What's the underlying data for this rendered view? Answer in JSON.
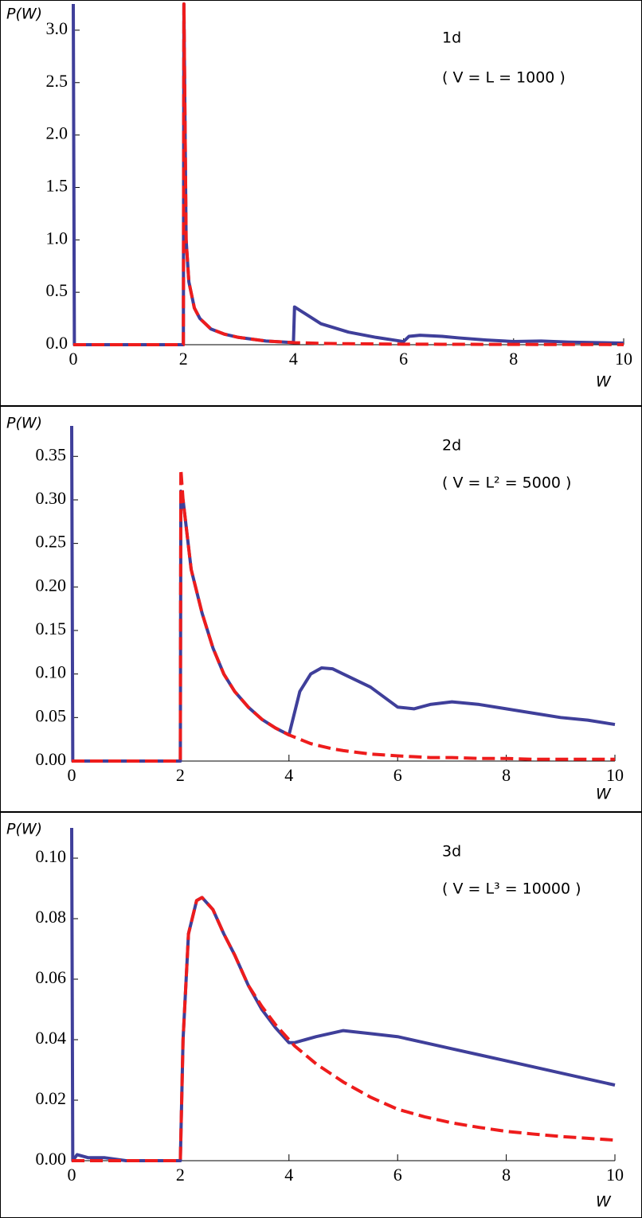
{
  "chart_data": [
    {
      "type": "line",
      "ylabel": "P(W)",
      "xlabel": "W",
      "annotations": [
        "1d",
        "( V = L = 1000 )"
      ],
      "xlim": [
        0,
        10
      ],
      "xticks": [
        0,
        2,
        4,
        6,
        8,
        10
      ],
      "ylim": [
        0,
        3.25
      ],
      "yticks": [
        {
          "value": 0,
          "label": "0.0"
        },
        0.5,
        {
          "value": 1,
          "label": "1.0"
        },
        1.5,
        {
          "value": 2,
          "label": "2.0"
        },
        2.5,
        {
          "value": 3,
          "label": "3.0"
        }
      ],
      "x": [
        0,
        0.02,
        2.0,
        2.01,
        2.05,
        2.1,
        2.2,
        2.3,
        2.5,
        2.75,
        3,
        3.5,
        4.0,
        4.02,
        4.2,
        4.5,
        5,
        5.5,
        6.0,
        6.1,
        6.3,
        6.7,
        7,
        7.5,
        8,
        8.5,
        9,
        9.5,
        10
      ],
      "series": [
        {
          "color": "#3f3f9a",
          "dashed": false,
          "values": [
            3.25,
            0,
            0,
            3.25,
            1.0,
            0.6,
            0.35,
            0.25,
            0.15,
            0.1,
            0.07,
            0.035,
            0.02,
            0.36,
            0.3,
            0.2,
            0.12,
            0.07,
            0.03,
            0.08,
            0.09,
            0.08,
            0.065,
            0.045,
            0.03,
            0.035,
            0.025,
            0.02,
            0.015
          ]
        },
        {
          "color": "#ee1c1c",
          "dashed": true,
          "values": [
            0,
            0,
            0,
            3.25,
            1.0,
            0.6,
            0.35,
            0.25,
            0.15,
            0.1,
            0.07,
            0.035,
            0.02,
            0.019,
            0.017,
            0.013,
            0.009,
            0.007,
            0.005,
            0.005,
            0.005,
            0.004,
            0.004,
            0.003,
            0.003,
            0.002,
            0.002,
            0.002,
            0.001
          ]
        }
      ]
    },
    {
      "type": "line",
      "ylabel": "P(W)",
      "xlabel": "W",
      "annotations": [
        "2d",
        "( V = L² = 5000 )"
      ],
      "xlim": [
        0,
        10
      ],
      "xticks": [
        0,
        2,
        4,
        6,
        8,
        10
      ],
      "ylim": [
        0,
        0.385
      ],
      "yticks": [
        {
          "value": 0,
          "label": "0.00"
        },
        0.05,
        {
          "value": 0.1,
          "label": "0.10"
        },
        0.15,
        {
          "value": 0.2,
          "label": "0.20"
        },
        0.25,
        {
          "value": 0.3,
          "label": "0.30"
        },
        0.35
      ],
      "x": [
        0,
        0.02,
        2.0,
        2.01,
        2.05,
        2.2,
        2.4,
        2.6,
        2.8,
        3,
        3.25,
        3.5,
        3.75,
        4.0,
        4.2,
        4.4,
        4.6,
        4.8,
        5,
        5.5,
        6,
        6.3,
        6.6,
        7,
        7.5,
        8,
        8.5,
        9,
        9.5,
        10
      ],
      "series": [
        {
          "color": "#3f3f9a",
          "dashed": false,
          "values": [
            0.385,
            0,
            0,
            0.31,
            0.3,
            0.22,
            0.17,
            0.13,
            0.1,
            0.08,
            0.062,
            0.048,
            0.038,
            0.03,
            0.08,
            0.1,
            0.107,
            0.106,
            0.1,
            0.085,
            0.062,
            0.06,
            0.065,
            0.068,
            0.065,
            0.06,
            0.055,
            0.05,
            0.047,
            0.042
          ]
        },
        {
          "color": "#ee1c1c",
          "dashed": true,
          "values": [
            0,
            0,
            0,
            0.335,
            0.3,
            0.22,
            0.17,
            0.13,
            0.1,
            0.08,
            0.062,
            0.048,
            0.038,
            0.03,
            0.025,
            0.02,
            0.017,
            0.014,
            0.012,
            0.008,
            0.006,
            0.005,
            0.004,
            0.004,
            0.003,
            0.003,
            0.002,
            0.002,
            0.002,
            0.002
          ]
        }
      ]
    },
    {
      "type": "line",
      "ylabel": "P(W)",
      "xlabel": "W",
      "annotations": [
        "3d",
        "( V = L³ = 10000 )"
      ],
      "xlim": [
        0,
        10
      ],
      "xticks": [
        0,
        2,
        4,
        6,
        8,
        10
      ],
      "ylim": [
        0,
        0.11
      ],
      "yticks": [
        {
          "value": 0,
          "label": "0.00"
        },
        0.02,
        0.04,
        0.06,
        0.08,
        {
          "value": 0.1,
          "label": "0.10"
        }
      ],
      "x": [
        0,
        0.02,
        0.1,
        0.3,
        0.6,
        1,
        1.5,
        2.0,
        2.05,
        2.15,
        2.3,
        2.4,
        2.6,
        2.8,
        3,
        3.25,
        3.5,
        3.75,
        4.0,
        4.1,
        4.5,
        5,
        5.5,
        6,
        6.5,
        7,
        7.5,
        8,
        8.5,
        9,
        9.5,
        10
      ],
      "series": [
        {
          "color": "#3f3f9a",
          "dashed": false,
          "values": [
            0.11,
            0,
            0.002,
            0.001,
            0.001,
            0,
            0,
            0,
            0.04,
            0.075,
            0.086,
            0.087,
            0.083,
            0.075,
            0.068,
            0.058,
            0.05,
            0.044,
            0.039,
            0.039,
            0.041,
            0.043,
            0.042,
            0.041,
            0.039,
            0.037,
            0.035,
            0.033,
            0.031,
            0.029,
            0.027,
            0.025
          ]
        },
        {
          "color": "#ee1c1c",
          "dashed": true,
          "values": [
            0,
            0,
            0,
            0,
            0,
            0,
            0,
            0,
            0.04,
            0.075,
            0.086,
            0.087,
            0.083,
            0.075,
            0.068,
            0.058,
            0.051,
            0.045,
            0.04,
            0.038,
            0.032,
            0.026,
            0.021,
            0.017,
            0.0145,
            0.0125,
            0.011,
            0.0097,
            0.0088,
            0.008,
            0.0074,
            0.0068
          ]
        }
      ]
    }
  ]
}
